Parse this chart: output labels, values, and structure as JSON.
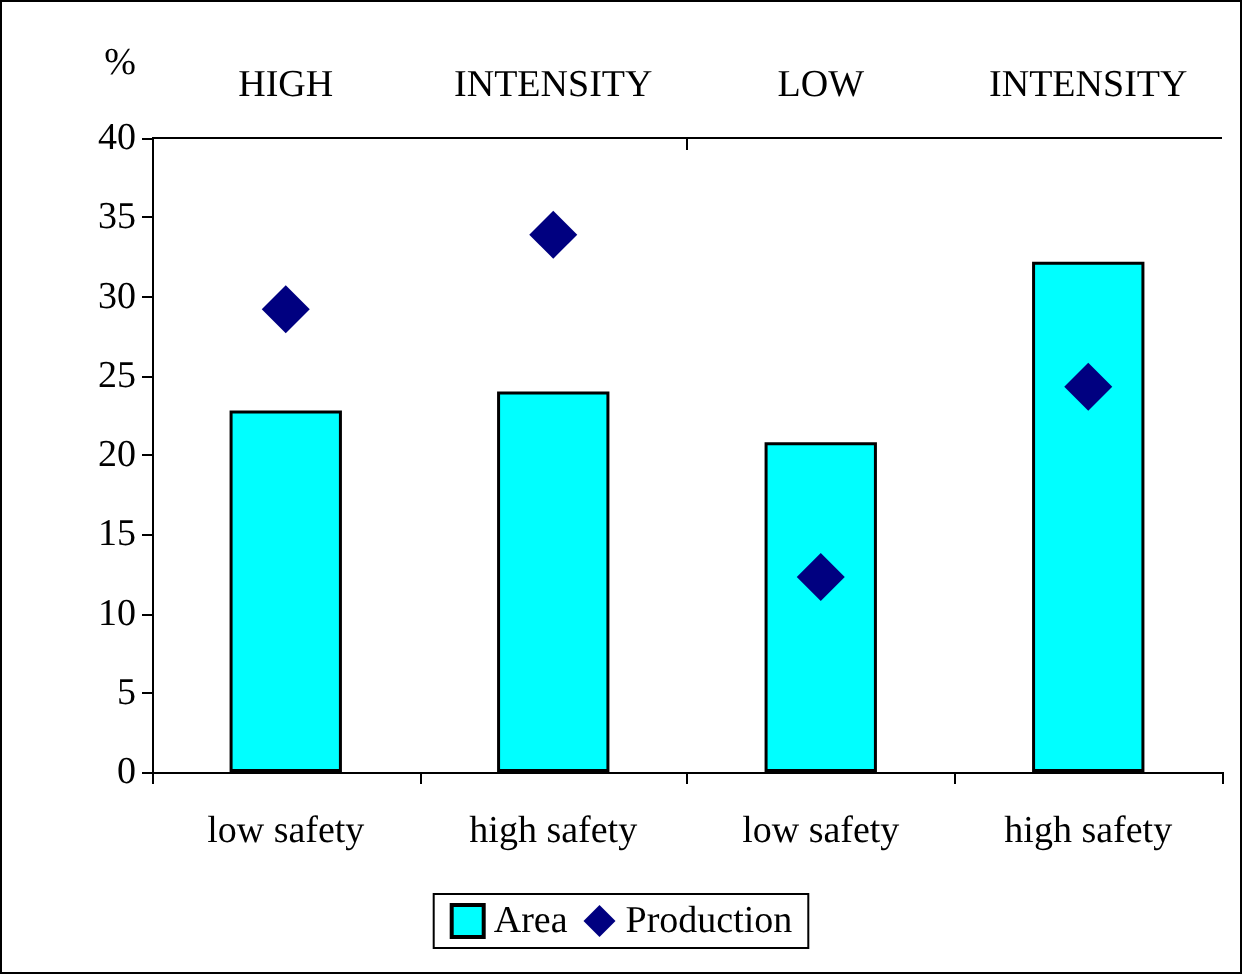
{
  "chart_data": {
    "type": "bar",
    "ylabel": "%",
    "categories": [
      "low safety",
      "high safety",
      "low safety",
      "high safety"
    ],
    "annotations": [
      "HIGH",
      "INTENSITY",
      "LOW",
      "INTENSITY"
    ],
    "series": [
      {
        "name": "Area",
        "color": "#00ffff",
        "values": [
          22.8,
          24.0,
          20.8,
          32.2
        ]
      },
      {
        "name": "Production",
        "type": "scatter",
        "color": "#000080",
        "marker": "diamond",
        "values": [
          29.2,
          33.9,
          12.3,
          24.3
        ]
      }
    ],
    "ylim": [
      0,
      40
    ],
    "yticks": [
      0,
      5,
      10,
      15,
      20,
      25,
      30,
      35,
      40
    ],
    "grid": false,
    "legend": "bottom"
  }
}
